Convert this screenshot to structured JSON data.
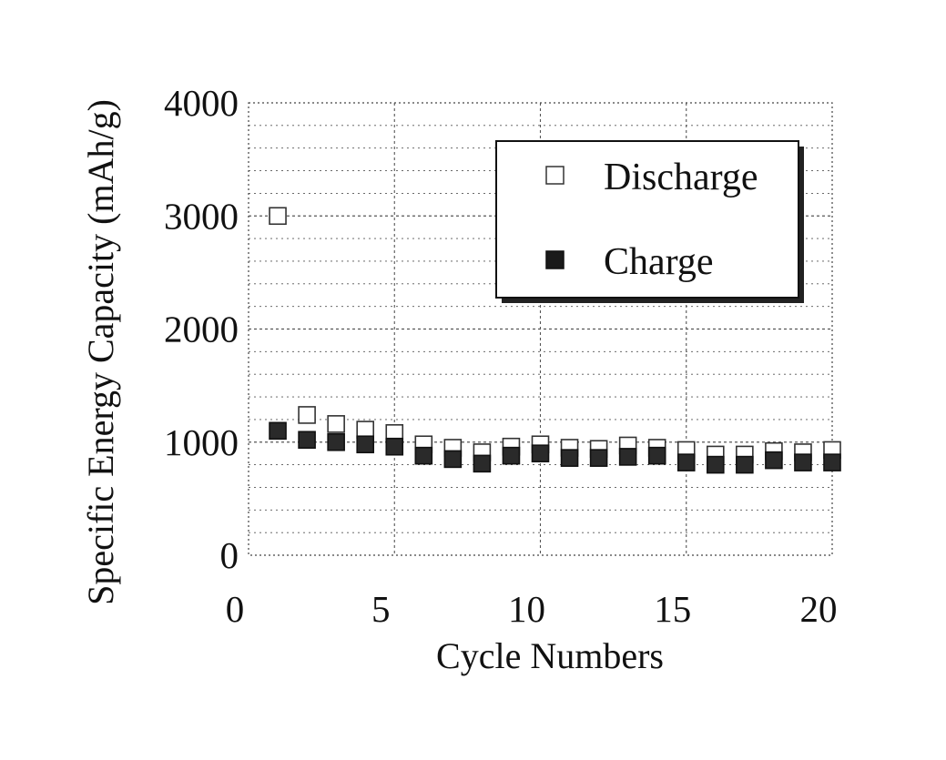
{
  "chart_data": {
    "type": "scatter",
    "xlabel": "Cycle Numbers",
    "ylabel": "Specific Energy Capacity (mAh/g)",
    "xlim": [
      0,
      20
    ],
    "ylim": [
      0,
      4000
    ],
    "x_ticks": [
      "0",
      "5",
      "10",
      "15",
      "20"
    ],
    "y_ticks": [
      "0",
      "1000",
      "2000",
      "3000",
      "4000"
    ],
    "grid": true,
    "legend_position": "top-right",
    "series": [
      {
        "name": "Discharge",
        "marker": "open-square",
        "x": [
          1,
          2,
          3,
          4,
          5,
          6,
          7,
          8,
          9,
          10,
          11,
          12,
          13,
          14,
          15,
          16,
          17,
          18,
          19,
          20
        ],
        "y": [
          3000,
          1240,
          1160,
          1110,
          1080,
          980,
          950,
          910,
          960,
          980,
          950,
          940,
          970,
          950,
          930,
          890,
          890,
          920,
          910,
          930
        ]
      },
      {
        "name": "Charge",
        "marker": "filled-square",
        "x": [
          1,
          2,
          3,
          4,
          5,
          6,
          7,
          8,
          9,
          10,
          11,
          12,
          13,
          14,
          15,
          16,
          17,
          18,
          19,
          20
        ],
        "y": [
          1100,
          1020,
          1000,
          980,
          960,
          880,
          850,
          810,
          880,
          900,
          860,
          860,
          870,
          880,
          820,
          800,
          800,
          840,
          820,
          820
        ]
      }
    ]
  },
  "colors": {
    "text": "#111111",
    "grid": "#555555",
    "marker_fill": "#2a2a2a"
  }
}
